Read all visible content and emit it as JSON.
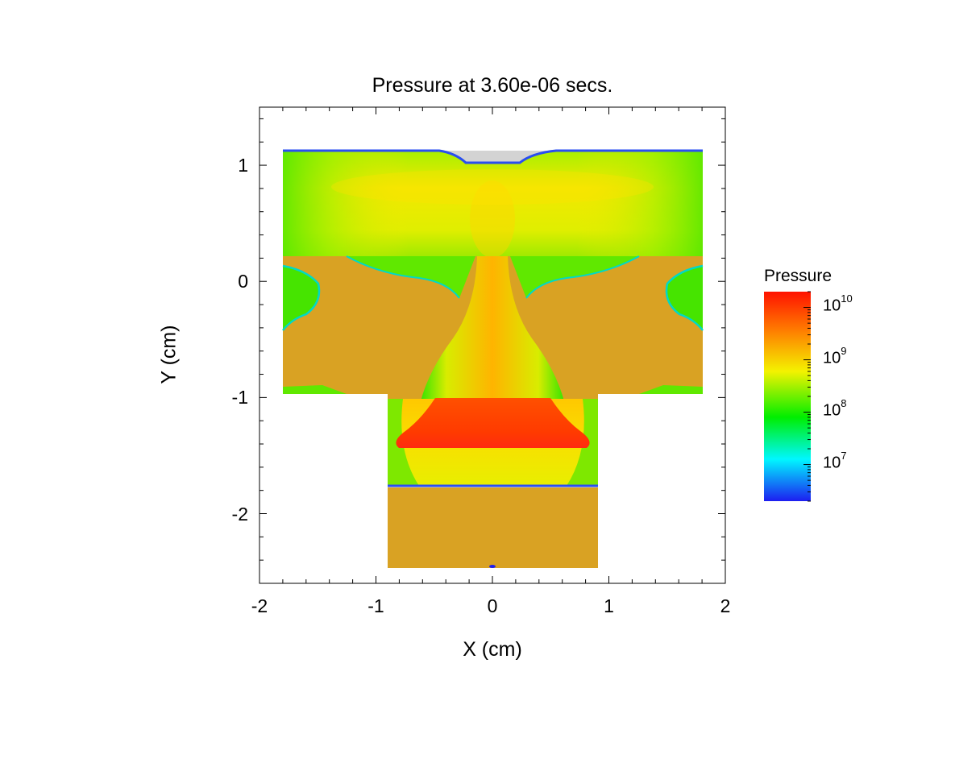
{
  "chart_data": {
    "type": "heatmap",
    "title": "Pressure at 3.60e-06 secs.",
    "xlabel": "X (cm)",
    "ylabel": "Y (cm)",
    "xlim": [
      -2,
      2
    ],
    "ylim": [
      -2.6,
      1.5
    ],
    "x_ticks": [
      "-2",
      "-1",
      "0",
      "1",
      "2"
    ],
    "y_ticks": [
      "1",
      "0",
      "-1",
      "-2"
    ],
    "x_tick_values": [
      -2,
      -1,
      0,
      1,
      2
    ],
    "y_tick_values": [
      1,
      0,
      -1,
      -2
    ],
    "grid": false,
    "colorbar": {
      "title": "Pressure",
      "scale": "log",
      "range": [
        2000000.0,
        20000000000.0
      ],
      "ticks": [
        {
          "base": "10",
          "exp": "10",
          "value": 10000000000.0
        },
        {
          "base": "10",
          "exp": "9",
          "value": 1000000000.0
        },
        {
          "base": "10",
          "exp": "8",
          "value": 100000000.0
        },
        {
          "base": "10",
          "exp": "7",
          "value": 10000000.0
        }
      ],
      "colors": [
        "#1d1ef0",
        "#00f7ff",
        "#00ee00",
        "#f4f200",
        "#ff7a00",
        "#ff1200"
      ]
    },
    "regions": [
      {
        "name": "upper-chamber",
        "x": [
          -1.8,
          1.8
        ],
        "y": [
          0.22,
          1.12
        ],
        "pressure": 1000000000.0
      },
      {
        "name": "middle-left-material",
        "x": [
          -1.8,
          -0.9
        ],
        "y": [
          -0.96,
          0.22
        ],
        "pressure": 2000000.0
      },
      {
        "name": "middle-right-material",
        "x": [
          0.9,
          1.8
        ],
        "y": [
          -0.96,
          0.22
        ],
        "pressure": 2000000.0
      },
      {
        "name": "central-jet",
        "x": [
          -0.4,
          0.4
        ],
        "y": [
          -1.0,
          0.22
        ],
        "pressure": 3000000000.0
      },
      {
        "name": "high-pressure-zone",
        "x": [
          -0.85,
          0.85
        ],
        "y": [
          -1.42,
          -1.0
        ],
        "pressure": 10000000000.0
      },
      {
        "name": "lower-gas-zone",
        "x": [
          -0.9,
          0.9
        ],
        "y": [
          -1.76,
          -1.42
        ],
        "pressure": 2000000000.0
      },
      {
        "name": "lower-material",
        "x": [
          -0.9,
          0.9
        ],
        "y": [
          -2.47,
          -1.76
        ],
        "pressure": 2000000.0
      }
    ],
    "material_color": "#d9a223",
    "void_color": "#d3d3d3"
  }
}
